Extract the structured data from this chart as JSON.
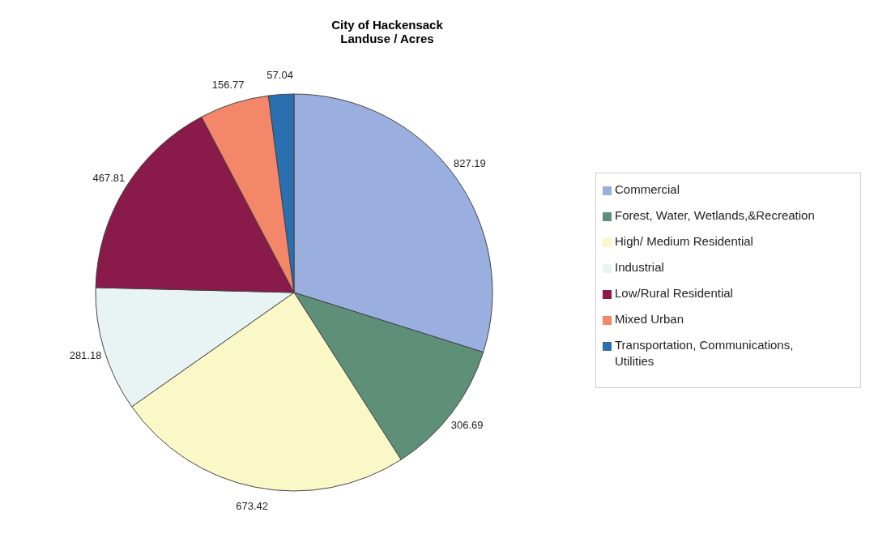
{
  "chart_data": {
    "type": "pie",
    "title": "City of Hackensack",
    "subtitle": "Landuse / Acres",
    "categories": [
      "Commercial",
      "Forest, Water, Wetlands,&Recreation",
      "High/ Medium Residential",
      "Industrial",
      "Low/Rural Residential",
      "Mixed Urban",
      "Transportation, Communications, Utilities"
    ],
    "values": [
      827.19,
      306.69,
      673.42,
      281.18,
      467.81,
      156.77,
      57.04
    ],
    "colors": [
      "#9aaee0",
      "#5e8f78",
      "#fbf8c8",
      "#e8f4f4",
      "#8a1a4a",
      "#f4866a",
      "#2a70b0"
    ],
    "data_labels": true,
    "legend": "right"
  }
}
